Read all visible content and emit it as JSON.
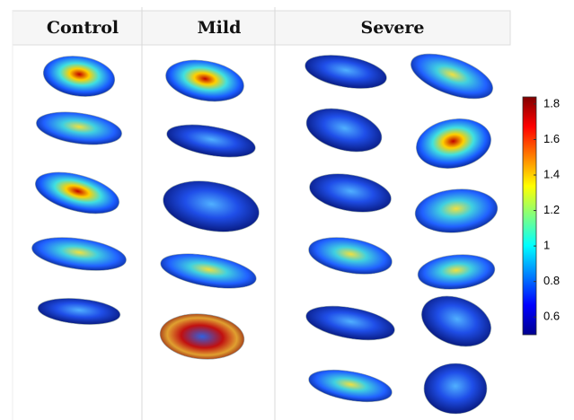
{
  "columns": [
    "Control",
    "Mild",
    "Severe"
  ],
  "colorbar": {
    "lim": [
      0.5,
      1.84
    ],
    "ticks": [
      0.6,
      0.8,
      1,
      1.2,
      1.4,
      1.6,
      1.8
    ]
  }
}
